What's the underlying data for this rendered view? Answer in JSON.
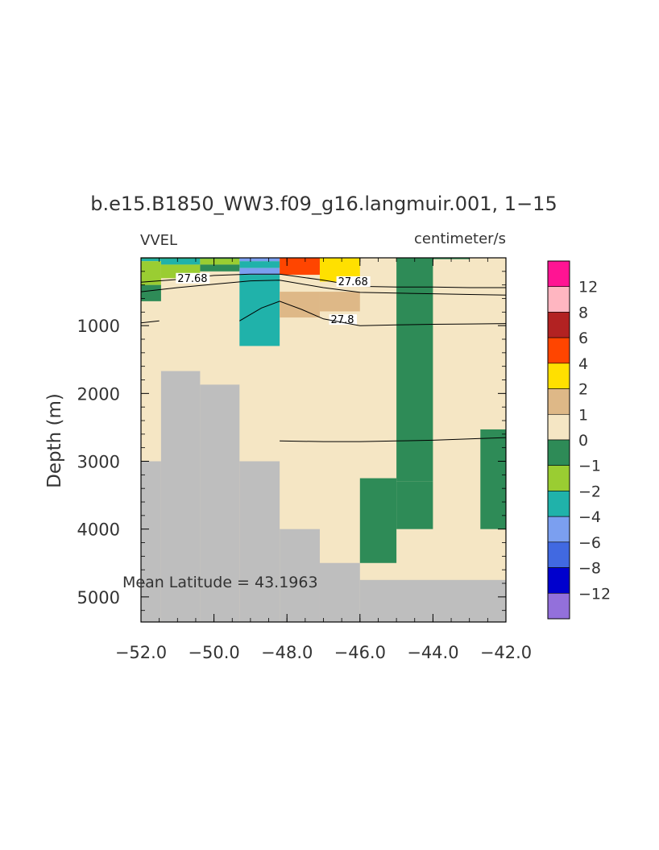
{
  "chart_data": {
    "type": "heatmap",
    "title": "b.e15.B1850_WW3.f09_g16.langmuir.001, 1−15",
    "left_label": "VVEL",
    "units_label": "centimeter/s",
    "ylabel": "Depth (m)",
    "xlabel": "",
    "annotation": "Mean Latitude = 43.1963",
    "xlim": [
      -52.0,
      -42.0
    ],
    "ylim": [
      5370,
      0
    ],
    "y_reversed": true,
    "x_tick_labels": [
      "−52.0",
      "−50.0",
      "−48.0",
      "−46.0",
      "−44.0",
      "−42.0"
    ],
    "x_ticks": [
      -52,
      -50,
      -48,
      -46,
      -44,
      -42
    ],
    "y_tick_labels": [
      "1000",
      "2000",
      "3000",
      "4000",
      "5000"
    ],
    "y_ticks": [
      1000,
      2000,
      3000,
      4000,
      5000
    ],
    "colorbar": {
      "labels": [
        "12",
        "8",
        "6",
        "4",
        "2",
        "1",
        "0",
        "−1",
        "−2",
        "−4",
        "−6",
        "−8",
        "−12"
      ],
      "colors_top_to_bottom": [
        "#ff1493",
        "#ffb6c1",
        "#b22222",
        "#ff4500",
        "#ffe000",
        "#deb887",
        "#f5e6c4",
        "#2e8b57",
        "#9acd32",
        "#20b2aa",
        "#7b9ff0",
        "#4169e1",
        "#0000cd",
        "#9370db"
      ]
    },
    "level_colors": {
      "land": "#bebebe",
      "c_0_1": "#f5e6c4",
      "c_1_2": "#deb887",
      "c_2_4": "#ffe000",
      "c_4_6": "#ff4500",
      "c_m1_0": "#2e8b57",
      "c_m2_m1": "#9acd32",
      "c_m4_m2": "#20b2aa",
      "c_m6_m4": "#7b9ff0"
    },
    "land_bottom_depth": [
      {
        "x0": -52.0,
        "x1": -51.45,
        "depth": 3000
      },
      {
        "x0": -51.45,
        "x1": -50.38,
        "depth": 1670
      },
      {
        "x0": -50.38,
        "x1": -49.3,
        "depth": 1870
      },
      {
        "x0": -49.3,
        "x1": -48.2,
        "depth": 3000
      },
      {
        "x0": -48.2,
        "x1": -47.1,
        "depth": 4000
      },
      {
        "x0": -47.1,
        "x1": -46.0,
        "depth": 4500
      },
      {
        "x0": -46.0,
        "x1": -42.0,
        "depth": 4750
      }
    ],
    "cells": [
      {
        "x0": -52.0,
        "x1": -51.45,
        "d0": 0,
        "d1": 50,
        "level": "c_m4_m2"
      },
      {
        "x0": -51.45,
        "x1": -50.38,
        "d0": 0,
        "d1": 100,
        "level": "c_m4_m2"
      },
      {
        "x0": -50.38,
        "x1": -49.3,
        "d0": 0,
        "d1": 100,
        "level": "c_m2_m1"
      },
      {
        "x0": -49.3,
        "x1": -48.2,
        "d0": 0,
        "d1": 50,
        "level": "c_m6_m4"
      },
      {
        "x0": -49.3,
        "x1": -48.2,
        "d0": 50,
        "d1": 150,
        "level": "c_m4_m2"
      },
      {
        "x0": -49.3,
        "x1": -48.2,
        "d0": 150,
        "d1": 250,
        "level": "c_m6_m4"
      },
      {
        "x0": -49.3,
        "x1": -48.2,
        "d0": 250,
        "d1": 1300,
        "level": "c_m4_m2"
      },
      {
        "x0": -52.0,
        "x1": -51.45,
        "d0": 50,
        "d1": 400,
        "level": "c_m2_m1"
      },
      {
        "x0": -51.45,
        "x1": -50.38,
        "d0": 100,
        "d1": 300,
        "level": "c_m2_m1"
      },
      {
        "x0": -50.38,
        "x1": -49.3,
        "d0": 100,
        "d1": 200,
        "level": "c_m1_0"
      },
      {
        "x0": -52.0,
        "x1": -51.45,
        "d0": 400,
        "d1": 640,
        "level": "c_m1_0"
      },
      {
        "x0": -48.2,
        "x1": -47.1,
        "d0": 0,
        "d1": 250,
        "level": "c_4_6"
      },
      {
        "x0": -47.1,
        "x1": -46.0,
        "d0": 0,
        "d1": 350,
        "level": "c_2_4"
      },
      {
        "x0": -48.2,
        "x1": -47.1,
        "d0": 500,
        "d1": 880,
        "level": "c_1_2"
      },
      {
        "x0": -47.1,
        "x1": -46.0,
        "d0": 500,
        "d1": 790,
        "level": "c_1_2"
      },
      {
        "x0": -45.0,
        "x1": -44.0,
        "d0": 0,
        "d1": 3300,
        "level": "c_m1_0"
      },
      {
        "x0": -45.0,
        "x1": -44.0,
        "d0": 3300,
        "d1": 4000,
        "level": "c_m1_0"
      },
      {
        "x0": -46.0,
        "x1": -45.0,
        "d0": 3250,
        "d1": 4500,
        "level": "c_m1_0"
      },
      {
        "x0": -42.7,
        "x1": -42.0,
        "d0": 2530,
        "d1": 4000,
        "level": "c_m1_0"
      },
      {
        "x0": -44.0,
        "x1": -43.0,
        "d0": 0,
        "d1": 20,
        "level": "c_m1_0"
      },
      {
        "x0": -52.0,
        "x1": -49.3,
        "d0": 0,
        "d1": 15,
        "level": "c_m1_0"
      }
    ],
    "contours": [
      {
        "label": "27.68",
        "label_at": [
          -51.0,
          330
        ],
        "points": [
          [
            -52.0,
            360
          ],
          [
            -51.0,
            320
          ],
          [
            -50.0,
            260
          ],
          [
            -49.0,
            240
          ],
          [
            -48.2,
            240
          ],
          [
            -47.0,
            330
          ],
          [
            -46.0,
            420
          ],
          [
            -45.0,
            430
          ],
          [
            -44.0,
            430
          ],
          [
            -43.0,
            440
          ],
          [
            -42.0,
            440
          ]
        ]
      },
      {
        "label": "27.68",
        "label_at": [
          -46.6,
          380
        ],
        "points": [
          [
            -52.0,
            500
          ],
          [
            -51.0,
            440
          ],
          [
            -50.0,
            390
          ],
          [
            -49.0,
            340
          ],
          [
            -48.2,
            330
          ],
          [
            -47.0,
            440
          ],
          [
            -46.0,
            510
          ],
          [
            -45.0,
            520
          ],
          [
            -44.0,
            530
          ],
          [
            -43.0,
            540
          ],
          [
            -42.0,
            550
          ]
        ]
      },
      {
        "label": "27.8",
        "label_at": [
          -46.8,
          940
        ],
        "points": [
          [
            -52.0,
            960
          ],
          [
            -51.5,
            930
          ]
        ]
      },
      {
        "label": "",
        "label_at": null,
        "points": [
          [
            -49.3,
            930
          ],
          [
            -48.7,
            740
          ],
          [
            -48.2,
            640
          ],
          [
            -47.6,
            760
          ],
          [
            -47.0,
            900
          ],
          [
            -46.0,
            1000
          ],
          [
            -45.0,
            990
          ],
          [
            -44.0,
            980
          ],
          [
            -43.0,
            975
          ],
          [
            -42.0,
            970
          ]
        ]
      },
      {
        "label": "",
        "label_at": null,
        "points": [
          [
            -48.2,
            2700
          ],
          [
            -47.0,
            2710
          ],
          [
            -46.0,
            2710
          ],
          [
            -45.0,
            2700
          ],
          [
            -44.0,
            2690
          ],
          [
            -43.0,
            2670
          ],
          [
            -42.0,
            2650
          ]
        ]
      }
    ]
  }
}
